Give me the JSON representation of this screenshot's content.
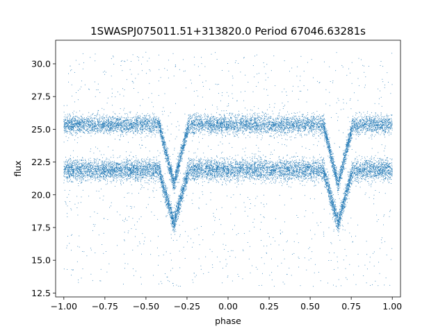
{
  "chart_data": {
    "type": "scatter",
    "title": "1SWASPJ075011.51+313820.0 Period 67046.63281s",
    "xlabel": "phase",
    "ylabel": "flux",
    "xlim": [
      -1.05,
      1.05
    ],
    "ylim": [
      12.2,
      31.8
    ],
    "x_ticks": [
      -1.0,
      -0.75,
      -0.5,
      -0.25,
      0.0,
      0.25,
      0.5,
      0.75,
      1.0
    ],
    "x_tick_labels": [
      "−1.00",
      "−0.75",
      "−0.50",
      "−0.25",
      "0.00",
      "0.25",
      "0.50",
      "0.75",
      "1.00"
    ],
    "y_ticks": [
      12.5,
      15.0,
      17.5,
      20.0,
      22.5,
      25.0,
      27.5,
      30.0
    ],
    "y_tick_labels": [
      "12.5",
      "15.0",
      "17.5",
      "20.0",
      "22.5",
      "25.0",
      "27.5",
      "30.0"
    ],
    "grid": false,
    "marker_color": "#1f77b4",
    "phase_range": [
      -1.0,
      1.0
    ],
    "bands": [
      {
        "baseline_flux": 25.35,
        "scatter": 0.35,
        "point_count": 7000
      },
      {
        "baseline_flux": 21.9,
        "scatter": 0.4,
        "point_count": 8000
      }
    ],
    "eclipses": [
      {
        "center_phase": -0.33,
        "min_flux_lower_band": 17.8,
        "min_flux_upper_band": 20.8,
        "half_width": 0.09
      },
      {
        "center_phase": 0.67,
        "min_flux_lower_band": 17.8,
        "min_flux_upper_band": 20.8,
        "half_width": 0.09
      }
    ],
    "outlier_range": [
      13.0,
      31.0
    ]
  }
}
